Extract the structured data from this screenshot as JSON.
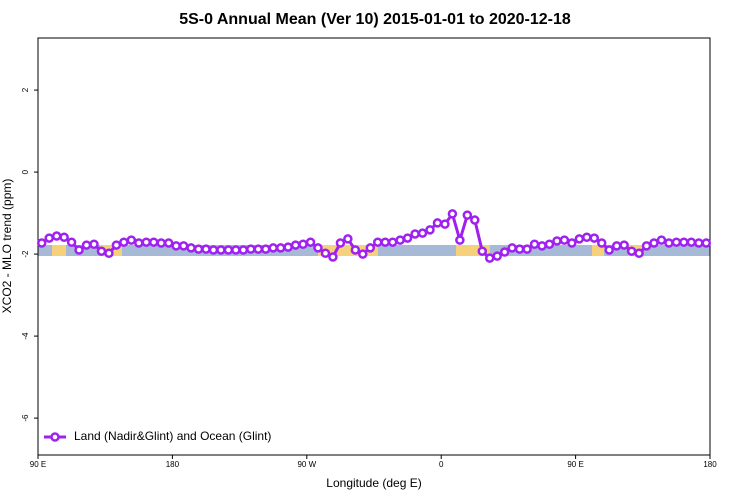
{
  "chart_data": {
    "type": "line",
    "title": "5S-0 Annual Mean (Ver 10)   2015-01-01 to 2020-12-18",
    "x_label": "Longitude (deg E)",
    "y_label": "XCO2 - MLO trend (ppm)",
    "x": [
      92.5,
      97.5,
      102.5,
      107.5,
      112.5,
      117.5,
      122.5,
      127.5,
      132.5,
      137.5,
      142.5,
      147.5,
      152.5,
      157.5,
      162.5,
      167.5,
      172.5,
      177.5,
      182.5,
      187.5,
      192.5,
      197.5,
      202.5,
      207.5,
      212.5,
      217.5,
      222.5,
      227.5,
      232.5,
      237.5,
      242.5,
      247.5,
      252.5,
      257.5,
      262.5,
      267.5,
      272.5,
      277.5,
      282.5,
      287.5,
      292.5,
      297.5,
      302.5,
      307.5,
      312.5,
      317.5,
      322.5,
      327.5,
      332.5,
      337.5,
      342.5,
      347.5,
      352.5,
      357.5,
      362.5,
      367.5,
      372.5,
      377.5,
      382.5,
      387.5,
      392.5,
      397.5,
      402.5,
      407.5,
      412.5,
      417.5,
      422.5,
      427.5,
      432.5,
      437.5,
      442.5,
      447.5,
      452.5,
      457.5,
      462.5,
      467.5,
      472.5,
      477.5,
      482.5,
      487.5,
      492.5,
      497.5,
      502.5,
      507.5,
      512.5,
      517.5,
      522.5,
      527.5,
      532.5,
      537.5
    ],
    "series": [
      {
        "name": "Land (Nadir&Glint) and Ocean (Glint)",
        "color": "#a020f0",
        "values": [
          -1.73,
          -1.61,
          -1.56,
          -1.59,
          -1.71,
          -1.9,
          -1.78,
          -1.76,
          -1.93,
          -1.98,
          -1.78,
          -1.71,
          -1.66,
          -1.73,
          -1.71,
          -1.71,
          -1.73,
          -1.73,
          -1.8,
          -1.8,
          -1.85,
          -1.88,
          -1.88,
          -1.9,
          -1.9,
          -1.9,
          -1.9,
          -1.9,
          -1.88,
          -1.88,
          -1.88,
          -1.85,
          -1.85,
          -1.83,
          -1.78,
          -1.76,
          -1.71,
          -1.85,
          -1.98,
          -2.07,
          -1.73,
          -1.63,
          -1.9,
          -2.0,
          -1.85,
          -1.71,
          -1.71,
          -1.71,
          -1.66,
          -1.61,
          -1.51,
          -1.49,
          -1.41,
          -1.24,
          -1.27,
          -1.02,
          -1.66,
          -1.05,
          -1.17,
          -1.93,
          -2.1,
          -2.05,
          -1.95,
          -1.85,
          -1.88,
          -1.88,
          -1.76,
          -1.8,
          -1.76,
          -1.68,
          -1.66,
          -1.73,
          -1.63,
          -1.59,
          -1.61,
          -1.73,
          -1.9,
          -1.8,
          -1.78,
          -1.93,
          -1.98,
          -1.8,
          -1.73,
          -1.66,
          -1.73,
          -1.71,
          -1.71,
          -1.71,
          -1.73,
          -1.73
        ]
      }
    ],
    "xlim": [
      90,
      540
    ],
    "xticks": [
      {
        "value": 90,
        "label": "90 E"
      },
      180,
      {
        "value": 270,
        "label": "90 W"
      },
      {
        "value": 360,
        "label": "0"
      },
      {
        "value": 450,
        "label": "90 E"
      },
      {
        "value": 540,
        "label": "180"
      }
    ],
    "ylim": [
      -6.9,
      3.27
    ],
    "yticks": [
      -6,
      -4,
      -2,
      0,
      2
    ],
    "legend": "bottom-left"
  }
}
